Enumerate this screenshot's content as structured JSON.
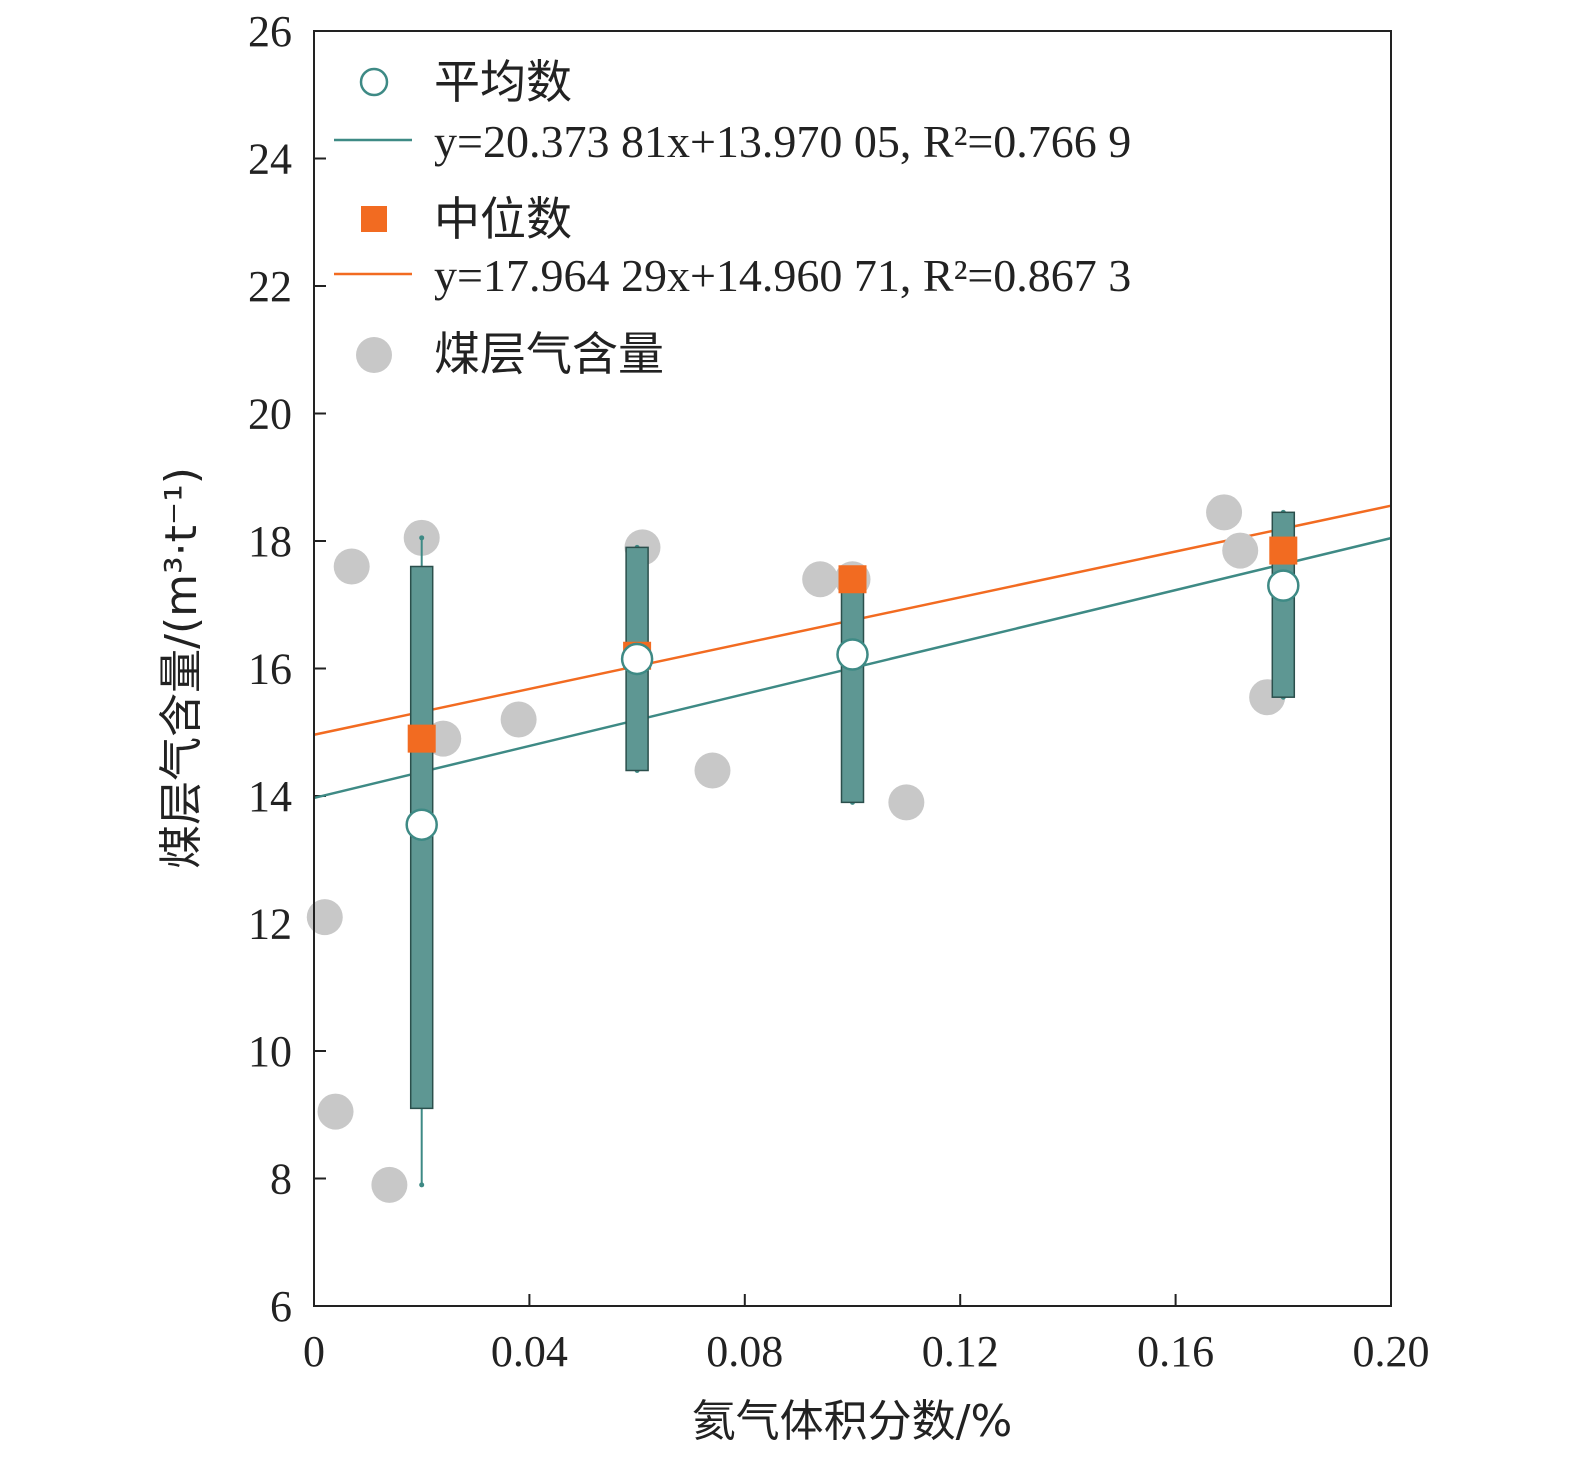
{
  "chart_data": {
    "type": "scatter",
    "xlabel": "氦气体积分数/%",
    "ylabel": "煤层气含量/(m³·t⁻¹)",
    "xlim": [
      0,
      0.2
    ],
    "ylim": [
      6,
      26
    ],
    "x_ticks": [
      0,
      0.04,
      0.08,
      0.12,
      0.16,
      0.2
    ],
    "x_tick_labels": [
      "0",
      "0.04",
      "0.08",
      "0.12",
      "0.16",
      "0.20"
    ],
    "y_ticks": [
      6,
      8,
      10,
      12,
      14,
      16,
      18,
      20,
      22,
      24,
      26
    ],
    "y_tick_labels": [
      "6",
      "8",
      "10",
      "12",
      "14",
      "16",
      "18",
      "20",
      "22",
      "24",
      "26"
    ],
    "grid": false,
    "legend_position": "top-left",
    "colors": {
      "mean": "#3e8a85",
      "median": "#f26b21",
      "raw": "#c8c8c8",
      "box": "#5e9793"
    },
    "legend": {
      "mean_label": "平均数",
      "mean_fit_label": "y=20.373 81x+13.970 05, R²=0.766 9",
      "median_label": "中位数",
      "median_fit_label": "y=17.964 29x+14.960 71, R²=0.867 3",
      "raw_label": "煤层气含量"
    },
    "raw_points": [
      {
        "x": 0.002,
        "y": 12.1
      },
      {
        "x": 0.004,
        "y": 9.05
      },
      {
        "x": 0.007,
        "y": 17.6
      },
      {
        "x": 0.014,
        "y": 7.9
      },
      {
        "x": 0.02,
        "y": 18.05
      },
      {
        "x": 0.024,
        "y": 14.9
      },
      {
        "x": 0.038,
        "y": 15.2
      },
      {
        "x": 0.061,
        "y": 17.9
      },
      {
        "x": 0.074,
        "y": 14.4
      },
      {
        "x": 0.094,
        "y": 17.4
      },
      {
        "x": 0.1,
        "y": 17.4
      },
      {
        "x": 0.11,
        "y": 13.9
      },
      {
        "x": 0.169,
        "y": 18.45
      },
      {
        "x": 0.172,
        "y": 17.85
      },
      {
        "x": 0.177,
        "y": 15.55
      }
    ],
    "boxes": [
      {
        "x": 0.02,
        "whisker_low": 7.9,
        "box_low": 9.1,
        "box_high": 17.6,
        "whisker_high": 18.05
      },
      {
        "x": 0.06,
        "whisker_low": 14.4,
        "box_low": 14.4,
        "box_high": 17.9,
        "whisker_high": 17.9
      },
      {
        "x": 0.1,
        "whisker_low": 13.9,
        "box_low": 13.9,
        "box_high": 17.4,
        "whisker_high": 17.4
      },
      {
        "x": 0.18,
        "whisker_low": 15.55,
        "box_low": 15.55,
        "box_high": 18.45,
        "whisker_high": 18.45
      }
    ],
    "series": [
      {
        "name": "平均数",
        "marker": "open-circle",
        "x": [
          0.02,
          0.06,
          0.1,
          0.18
        ],
        "values": [
          13.55,
          16.15,
          16.22,
          17.3
        ]
      },
      {
        "name": "中位数",
        "marker": "square",
        "x": [
          0.02,
          0.06,
          0.1,
          0.18
        ],
        "values": [
          14.9,
          16.2,
          17.4,
          17.85
        ]
      }
    ],
    "fit_lines": [
      {
        "series": "平均数",
        "slope": 20.37381,
        "intercept": 13.97005,
        "r2": 0.7669
      },
      {
        "series": "中位数",
        "slope": 17.96429,
        "intercept": 14.96071,
        "r2": 0.8673
      }
    ]
  }
}
